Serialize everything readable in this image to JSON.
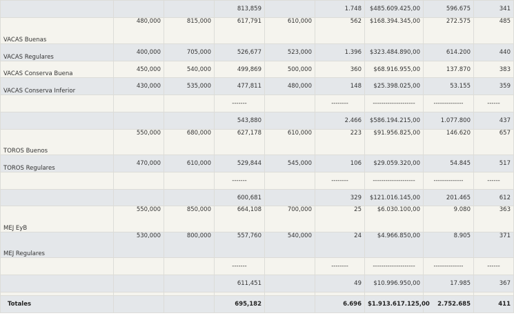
{
  "rows": [
    {
      "type": "subtotal",
      "bg": "gray",
      "h": 25,
      "cells": [
        "",
        "",
        "",
        "813,859",
        "",
        "1.748",
        "$485.609.425,00",
        "596.675",
        "341"
      ]
    },
    {
      "type": "item",
      "bg": "beige",
      "h": 38,
      "cells": [
        "VACAS Buenas",
        "480,000",
        "815,000",
        "617,791",
        "610,000",
        "562",
        "$168.394.345,00",
        "272.575",
        "485"
      ]
    },
    {
      "type": "item",
      "bg": "gray",
      "h": 25,
      "cells": [
        "VACAS Regulares",
        "400,000",
        "705,000",
        "526,677",
        "523,000",
        "1.396",
        "$323.484.890,00",
        "614.200",
        "440"
      ]
    },
    {
      "type": "item",
      "bg": "beige",
      "h": 24,
      "cells": [
        "VACAS Conserva Buena",
        "450,000",
        "540,000",
        "499,869",
        "500,000",
        "360",
        "$68.916.955,00",
        "137.870",
        "383"
      ]
    },
    {
      "type": "item",
      "bg": "gray",
      "h": 25,
      "cells": [
        "VACAS Conserva Inferior",
        "430,000",
        "535,000",
        "477,811",
        "480,000",
        "148",
        "$25.398.025,00",
        "53.155",
        "359"
      ]
    },
    {
      "type": "sep",
      "bg": "beige",
      "h": 25,
      "cells": [
        "",
        "",
        "",
        "-------",
        "",
        "--------",
        "--------------------",
        "--------------",
        "------"
      ]
    },
    {
      "type": "subtotal",
      "bg": "gray",
      "h": 25,
      "cells": [
        "",
        "",
        "",
        "543,880",
        "",
        "2.466",
        "$586.194.215,00",
        "1.077.800",
        "437"
      ]
    },
    {
      "type": "item",
      "bg": "beige",
      "h": 37,
      "cells": [
        "TOROS Buenos",
        "550,000",
        "680,000",
        "627,178",
        "610,000",
        "223",
        "$91.956.825,00",
        "146.620",
        "657"
      ]
    },
    {
      "type": "item",
      "bg": "gray",
      "h": 25,
      "cells": [
        "TOROS Regulares",
        "470,000",
        "610,000",
        "529,844",
        "545,000",
        "106",
        "$29.059.320,00",
        "54.845",
        "517"
      ]
    },
    {
      "type": "sep",
      "bg": "beige",
      "h": 25,
      "cells": [
        "",
        "",
        "",
        "-------",
        "",
        "--------",
        "--------------------",
        "--------------",
        "------"
      ]
    },
    {
      "type": "subtotal",
      "bg": "gray",
      "h": 24,
      "cells": [
        "",
        "",
        "",
        "600,681",
        "",
        "329",
        "$121.016.145,00",
        "201.465",
        "612"
      ]
    },
    {
      "type": "item",
      "bg": "beige",
      "h": 38,
      "cells": [
        "MEJ EyB",
        "550,000",
        "850,000",
        "664,108",
        "700,000",
        "25",
        "$6.030.100,00",
        "9.080",
        "363"
      ]
    },
    {
      "type": "item",
      "bg": "gray",
      "h": 37,
      "cells": [
        "MEJ Regulares",
        "530,000",
        "800,000",
        "557,760",
        "540,000",
        "24",
        "$4.966.850,00",
        "8.905",
        "371"
      ]
    },
    {
      "type": "sep",
      "bg": "beige",
      "h": 25,
      "cells": [
        "",
        "",
        "",
        "-------",
        "",
        "--------",
        "--------------------",
        "--------------",
        "------"
      ]
    },
    {
      "type": "subtotal",
      "bg": "gray",
      "h": 25,
      "cells": [
        "",
        "",
        "",
        "611,451",
        "",
        "49",
        "$10.996.950,00",
        "17.985",
        "367"
      ]
    },
    {
      "type": "gap",
      "bg": "beige",
      "h": 5,
      "cells": [
        "",
        "",
        "",
        "",
        "",
        "",
        "",
        "",
        ""
      ]
    },
    {
      "type": "total",
      "bg": "gray",
      "h": 25,
      "cells": [
        "Totales",
        "",
        "",
        "695,182",
        "",
        "6.696",
        "$1.913.617.125,00",
        "2.752.685",
        "411"
      ]
    }
  ]
}
